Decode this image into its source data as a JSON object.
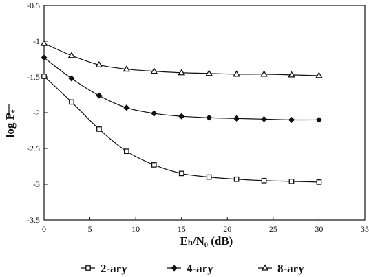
{
  "chart_data": {
    "type": "line",
    "xlabel": "Eₕ/N₀ (dB)",
    "ylabel": "log Pₑ",
    "xlim": [
      0,
      35
    ],
    "ylim": [
      -3.5,
      -0.5
    ],
    "xticks": [
      0,
      5,
      10,
      15,
      20,
      25,
      30,
      35
    ],
    "yticks": [
      -0.5,
      -1,
      -1.5,
      -2,
      -2.5,
      -3,
      -3.5
    ],
    "grid": false,
    "legend_position": "bottom",
    "x": [
      0,
      3,
      6,
      9,
      12,
      15,
      18,
      21,
      24,
      27,
      30
    ],
    "series": [
      {
        "name": "2-ary",
        "marker": "square",
        "values": [
          -1.49,
          -1.85,
          -2.23,
          -2.54,
          -2.73,
          -2.85,
          -2.9,
          -2.93,
          -2.95,
          -2.96,
          -2.97
        ]
      },
      {
        "name": "4-ary",
        "marker": "diamond",
        "values": [
          -1.23,
          -1.52,
          -1.76,
          -1.93,
          -2.01,
          -2.05,
          -2.07,
          -2.08,
          -2.09,
          -2.1,
          -2.1
        ]
      },
      {
        "name": "8-ary",
        "marker": "triangle",
        "values": [
          -1.03,
          -1.2,
          -1.33,
          -1.39,
          -1.42,
          -1.44,
          -1.45,
          -1.46,
          -1.46,
          -1.47,
          -1.48
        ]
      }
    ]
  }
}
